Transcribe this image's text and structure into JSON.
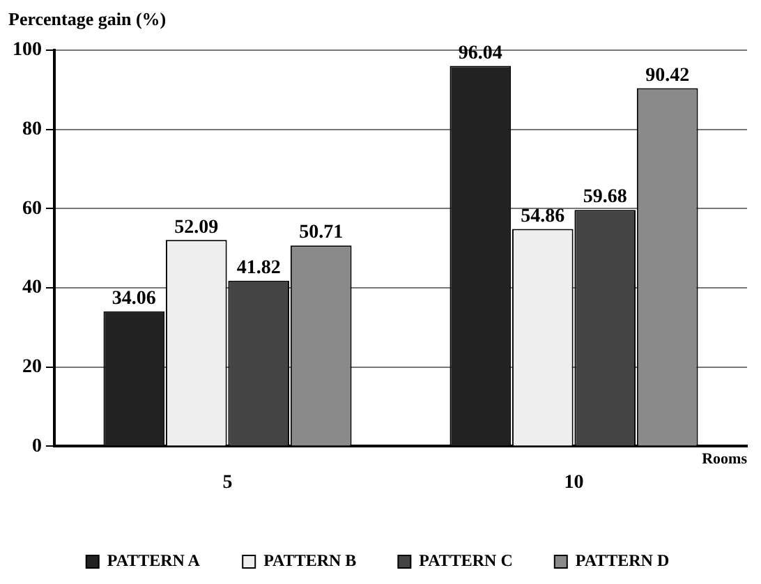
{
  "chart_data": {
    "type": "bar",
    "ylabel": "Percentage gain (%)",
    "xlabel": "Rooms",
    "categories": [
      "5",
      "10"
    ],
    "series": [
      {
        "name": "PATTERN A",
        "color": "#222222",
        "values": [
          34.06,
          96.04
        ]
      },
      {
        "name": "PATTERN B",
        "color": "#eeeeee",
        "values": [
          52.09,
          54.86
        ]
      },
      {
        "name": "PATTERN C",
        "color": "#444444",
        "values": [
          41.82,
          59.68
        ]
      },
      {
        "name": "PATTERN D",
        "color": "#8a8a8a",
        "values": [
          50.71,
          90.42
        ]
      }
    ],
    "ylim": [
      0,
      100
    ],
    "yticks": [
      0,
      20,
      40,
      60,
      80,
      100
    ],
    "grid": "y",
    "legend": "bottom",
    "data_labels": true
  }
}
